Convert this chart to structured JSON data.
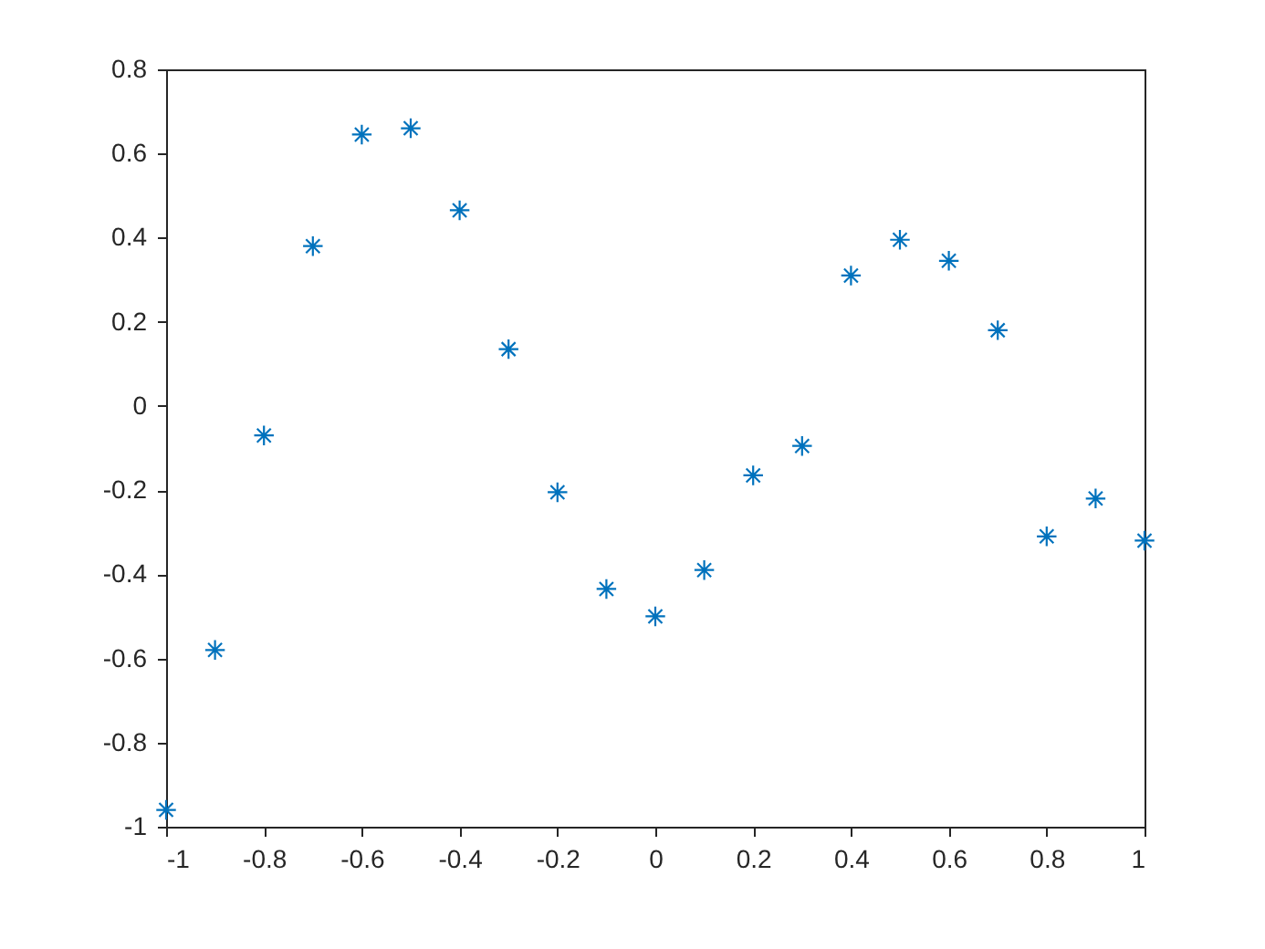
{
  "chart_data": {
    "type": "scatter",
    "x": [
      -1,
      -0.9,
      -0.8,
      -0.7,
      -0.6,
      -0.5,
      -0.4,
      -0.3,
      -0.2,
      -0.1,
      0,
      0.1,
      0.2,
      0.3,
      0.4,
      0.5,
      0.6,
      0.7,
      0.8,
      0.9,
      1
    ],
    "series": [
      {
        "color": "#0072bd",
        "values": [
          -0.96,
          -0.58,
          -0.07,
          0.38,
          0.645,
          0.66,
          0.465,
          0.135,
          -0.205,
          -0.435,
          -0.5,
          -0.39,
          -0.165,
          -0.095,
          0.31,
          0.395,
          0.345,
          0.18,
          -0.31,
          -0.22,
          -0.32
        ]
      }
    ],
    "xlim": [
      -1,
      1
    ],
    "ylim": [
      -1,
      0.8
    ],
    "xticks": [
      -1,
      -0.8,
      -0.6,
      -0.4,
      -0.2,
      0,
      0.2,
      0.4,
      0.6,
      0.8,
      1
    ],
    "yticks": [
      -1,
      -0.8,
      -0.6,
      -0.4,
      -0.2,
      0,
      0.2,
      0.4,
      0.6,
      0.8
    ],
    "marker": "cross",
    "grid": false
  }
}
